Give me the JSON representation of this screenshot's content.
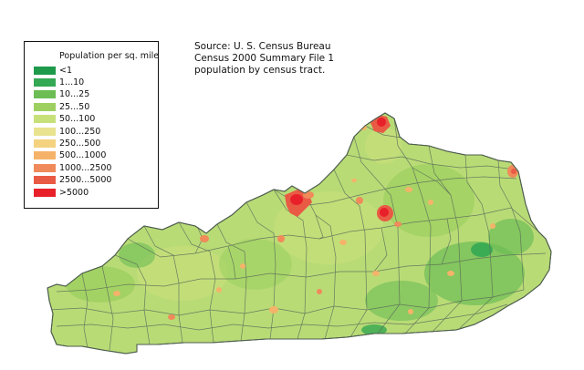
{
  "legend": {
    "title": "Population per sq. mile",
    "items": [
      {
        "label": "<1",
        "color": "#1e9a4a"
      },
      {
        "label": "1...10",
        "color": "#34a853"
      },
      {
        "label": "10...25",
        "color": "#6dbd55"
      },
      {
        "label": "25...50",
        "color": "#9dd060"
      },
      {
        "label": "50...100",
        "color": "#c8e07a"
      },
      {
        "label": "100...250",
        "color": "#e9e38f"
      },
      {
        "label": "250...500",
        "color": "#f4d27f"
      },
      {
        "label": "500...1000",
        "color": "#f5b36a"
      },
      {
        "label": "1000...2500",
        "color": "#f08a5a"
      },
      {
        "label": "2500...5000",
        "color": "#e95a45"
      },
      {
        "label": ">5000",
        "color": "#e8202a"
      }
    ]
  },
  "source": {
    "line1": "Source: U. S. Census Bureau",
    "line2": "Census 2000 Summary File 1",
    "line3": "population by census tract."
  },
  "map": {
    "base_color": "#b9db76",
    "border_color": "#5a6b5a",
    "urban_color": "#e8202a"
  }
}
